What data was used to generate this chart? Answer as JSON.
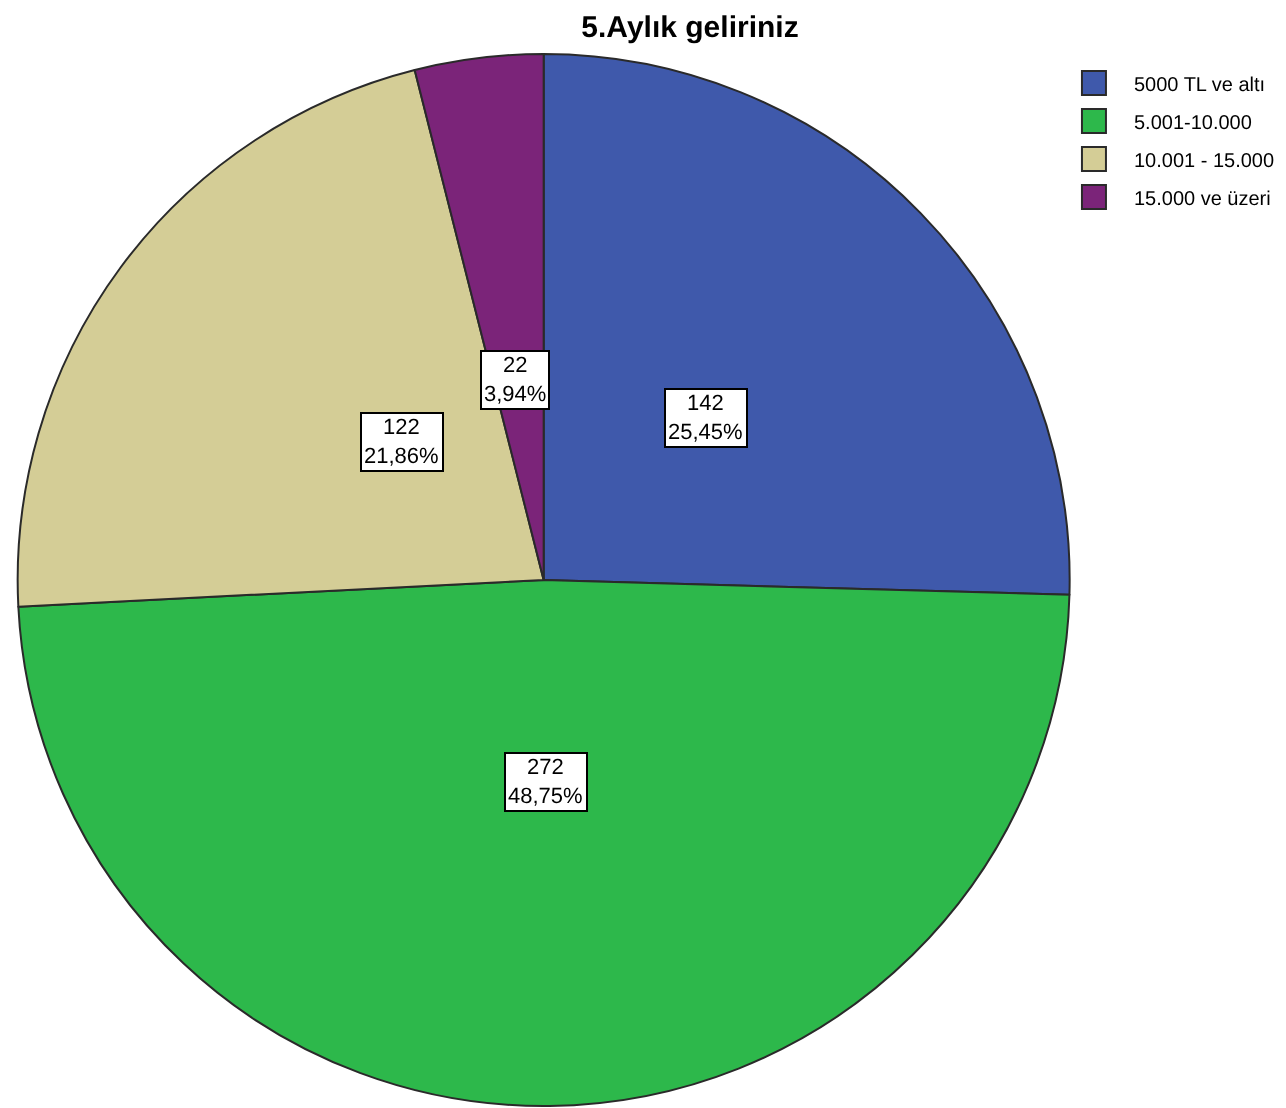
{
  "chart_data": {
    "type": "pie",
    "title": "5.Aylık geliriniz",
    "categories": [
      "5000 TL ve altı",
      "5.001-10.000",
      "10.001 - 15.000",
      "15.000 ve üzeri"
    ],
    "values": [
      142,
      272,
      122,
      22
    ],
    "colors": [
      "#3f59ab",
      "#2db84b",
      "#d4cd96",
      "#7b2479"
    ],
    "value_labels": [
      "142\n25,45%",
      "272\n48,75%",
      "122\n21,86%",
      "22\n3,94%"
    ],
    "legend": "top right"
  }
}
